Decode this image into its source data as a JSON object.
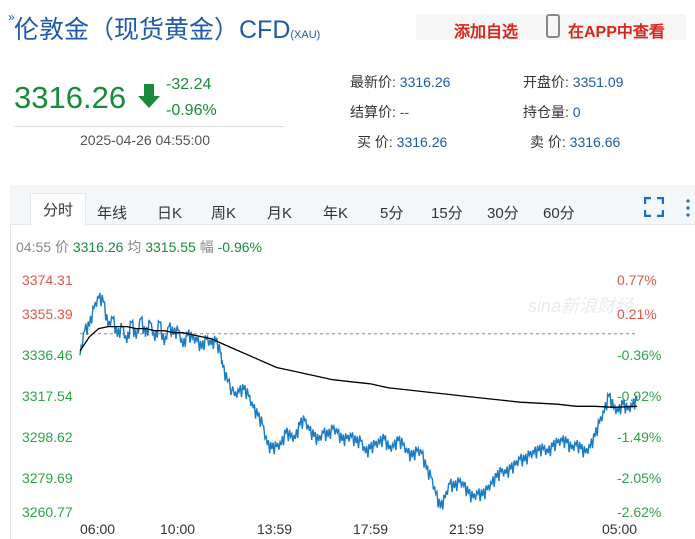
{
  "header": {
    "title": "伦敦金（现货黄金）CFD",
    "subtitle": "(XAU)",
    "add_watch": "添加自选",
    "view_app": "在APP中查看"
  },
  "quote": {
    "price": "3316.26",
    "change": "-32.24",
    "change_pct": "-0.96%",
    "datetime": "2025-04-26 04:55:00"
  },
  "fields": [
    {
      "label": "最新价:",
      "value": "3316.26"
    },
    {
      "label": "开盘价:",
      "value": "3351.09"
    },
    {
      "label": "结算价:",
      "value": "--"
    },
    {
      "label": "持仓量:",
      "value": "0"
    },
    {
      "label": "买 价:",
      "value": "3316.26"
    },
    {
      "label": "卖 价:",
      "value": "3316.66"
    }
  ],
  "tabs": [
    "分时",
    "年线",
    "日K",
    "周K",
    "月K",
    "年K",
    "5分",
    "15分",
    "30分",
    "60分"
  ],
  "active_tab": "分时",
  "info_bar": {
    "time": "04:55",
    "price_label": "价",
    "price": "3316.26",
    "avg_label": "均",
    "avg": "3315.55",
    "amp_label": "幅",
    "amp": "-0.96%"
  },
  "watermark": "sina新浪财经",
  "chart_data": {
    "type": "line",
    "y_ticks": [
      "3374.31",
      "3355.39",
      "3336.46",
      "3317.54",
      "3298.62",
      "3279.69",
      "3260.77"
    ],
    "y_pct_ticks": [
      "0.77%",
      "0.21%",
      "-0.36%",
      "-0.92%",
      "-1.49%",
      "-2.05%",
      "-2.62%"
    ],
    "x_ticks": [
      "06:00",
      "10:00",
      "13:59",
      "17:59",
      "21:59",
      "05:00"
    ],
    "ylim": [
      3260.77,
      3374.31
    ],
    "xlim": [
      0,
      1380
    ],
    "prev_settle": 3348.5,
    "colors": {
      "up": "#e0554a",
      "down": "#2ea34a",
      "price_line": "#1a7cc4",
      "avg_line": "#000000",
      "baseline": "#888888"
    },
    "series": [
      {
        "values": [
          [
            0,
            3338
          ],
          [
            10,
            3350
          ],
          [
            20,
            3352
          ],
          [
            30,
            3361
          ],
          [
            40,
            3366
          ],
          [
            50,
            3364
          ],
          [
            60,
            3352
          ],
          [
            70,
            3356
          ],
          [
            80,
            3347
          ],
          [
            90,
            3352
          ],
          [
            100,
            3344
          ],
          [
            110,
            3354
          ],
          [
            120,
            3346
          ],
          [
            130,
            3356
          ],
          [
            140,
            3347
          ],
          [
            150,
            3354
          ],
          [
            160,
            3345
          ],
          [
            170,
            3354
          ],
          [
            180,
            3343
          ],
          [
            190,
            3352
          ],
          [
            200,
            3348
          ],
          [
            210,
            3350
          ],
          [
            220,
            3342
          ],
          [
            230,
            3348
          ],
          [
            240,
            3346
          ],
          [
            250,
            3345
          ],
          [
            260,
            3341
          ],
          [
            270,
            3346
          ],
          [
            280,
            3343
          ],
          [
            290,
            3345
          ],
          [
            300,
            3339
          ],
          [
            305,
            3332
          ],
          [
            315,
            3325
          ],
          [
            330,
            3318
          ],
          [
            340,
            3320
          ],
          [
            350,
            3321
          ],
          [
            360,
            3318
          ],
          [
            370,
            3312
          ],
          [
            380,
            3308
          ],
          [
            390,
            3304
          ],
          [
            400,
            3294
          ],
          [
            410,
            3292
          ],
          [
            420,
            3293
          ],
          [
            430,
            3294
          ],
          [
            440,
            3300
          ],
          [
            450,
            3298
          ],
          [
            460,
            3297
          ],
          [
            470,
            3304
          ],
          [
            480,
            3306
          ],
          [
            490,
            3301
          ],
          [
            500,
            3298
          ],
          [
            510,
            3296
          ],
          [
            520,
            3300
          ],
          [
            530,
            3298
          ],
          [
            540,
            3302
          ],
          [
            550,
            3300
          ],
          [
            560,
            3296
          ],
          [
            570,
            3297
          ],
          [
            580,
            3298
          ],
          [
            590,
            3295
          ],
          [
            600,
            3296
          ],
          [
            610,
            3290
          ],
          [
            620,
            3292
          ],
          [
            630,
            3294
          ],
          [
            640,
            3295
          ],
          [
            650,
            3297
          ],
          [
            660,
            3292
          ],
          [
            670,
            3293
          ],
          [
            680,
            3296
          ],
          [
            690,
            3294
          ],
          [
            700,
            3290
          ],
          [
            710,
            3288
          ],
          [
            720,
            3291
          ],
          [
            730,
            3290
          ],
          [
            740,
            3282
          ],
          [
            750,
            3278
          ],
          [
            760,
            3270
          ],
          [
            770,
            3263
          ],
          [
            780,
            3268
          ],
          [
            790,
            3275
          ],
          [
            800,
            3273
          ],
          [
            810,
            3276
          ],
          [
            820,
            3274
          ],
          [
            830,
            3270
          ],
          [
            840,
            3268
          ],
          [
            850,
            3270
          ],
          [
            860,
            3269
          ],
          [
            870,
            3272
          ],
          [
            880,
            3275
          ],
          [
            890,
            3278
          ],
          [
            900,
            3281
          ],
          [
            910,
            3280
          ],
          [
            920,
            3282
          ],
          [
            930,
            3284
          ],
          [
            940,
            3287
          ],
          [
            950,
            3286
          ],
          [
            960,
            3289
          ],
          [
            970,
            3290
          ],
          [
            980,
            3291
          ],
          [
            990,
            3292
          ],
          [
            1000,
            3290
          ],
          [
            1010,
            3293
          ],
          [
            1020,
            3295
          ],
          [
            1030,
            3296
          ],
          [
            1040,
            3295
          ],
          [
            1050,
            3292
          ],
          [
            1060,
            3294
          ],
          [
            1070,
            3292
          ],
          [
            1080,
            3290
          ],
          [
            1090,
            3293
          ],
          [
            1100,
            3298
          ],
          [
            1110,
            3305
          ],
          [
            1120,
            3310
          ],
          [
            1130,
            3318
          ],
          [
            1140,
            3312
          ],
          [
            1150,
            3310
          ],
          [
            1160,
            3314
          ],
          [
            1170,
            3311
          ],
          [
            1180,
            3313
          ],
          [
            1190,
            3316
          ]
        ]
      },
      {
        "values": [
          [
            0,
            3340
          ],
          [
            20,
            3347
          ],
          [
            40,
            3351
          ],
          [
            60,
            3352
          ],
          [
            80,
            3352
          ],
          [
            100,
            3352
          ],
          [
            120,
            3351
          ],
          [
            140,
            3351
          ],
          [
            160,
            3350
          ],
          [
            180,
            3350
          ],
          [
            200,
            3349
          ],
          [
            220,
            3349
          ],
          [
            240,
            3348
          ],
          [
            260,
            3347
          ],
          [
            280,
            3346
          ],
          [
            300,
            3344
          ],
          [
            320,
            3342
          ],
          [
            340,
            3340
          ],
          [
            360,
            3338
          ],
          [
            380,
            3336
          ],
          [
            400,
            3334
          ],
          [
            420,
            3332
          ],
          [
            440,
            3331
          ],
          [
            460,
            3330
          ],
          [
            480,
            3329
          ],
          [
            500,
            3328
          ],
          [
            540,
            3326
          ],
          [
            580,
            3325
          ],
          [
            620,
            3324
          ],
          [
            660,
            3322
          ],
          [
            700,
            3321
          ],
          [
            740,
            3320
          ],
          [
            780,
            3319
          ],
          [
            820,
            3318
          ],
          [
            860,
            3317
          ],
          [
            900,
            3316
          ],
          [
            940,
            3315
          ],
          [
            980,
            3314.5
          ],
          [
            1020,
            3314
          ],
          [
            1060,
            3313
          ],
          [
            1100,
            3313
          ],
          [
            1140,
            3312.5
          ],
          [
            1190,
            3313
          ]
        ]
      }
    ]
  }
}
